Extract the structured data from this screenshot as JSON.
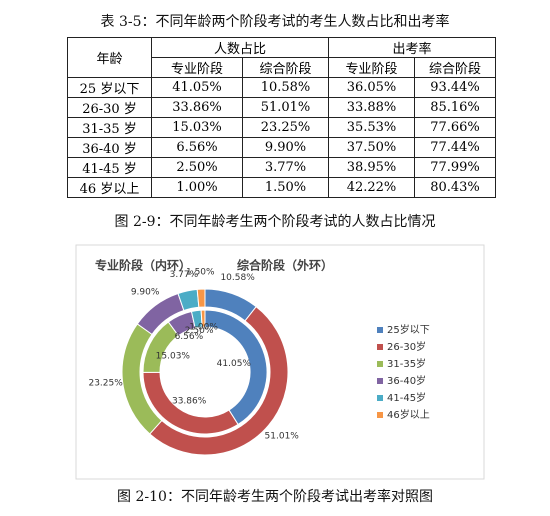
{
  "table_caption": "表 3-5：不同年龄两个阶段考试的考生人数占比和出考率",
  "table": {
    "header": [
      "年龄",
      "人数占比",
      "出考率"
    ],
    "subheader": [
      "专业阶段",
      "综合阶段",
      "专业阶段",
      "综合阶段"
    ],
    "rows": [
      [
        "25 岁以下",
        "41.05%",
        "10.58%",
        "36.05%",
        "93.44%"
      ],
      [
        "26-30 岁",
        "33.86%",
        "51.01%",
        "33.88%",
        "85.16%"
      ],
      [
        "31-35 岁",
        "15.03%",
        "23.25%",
        "35.53%",
        "77.66%"
      ],
      [
        "36-40 岁",
        "6.56%",
        "9.90%",
        "37.50%",
        "77.44%"
      ],
      [
        "41-45 岁",
        "2.50%",
        "3.77%",
        "38.95%",
        "77.99%"
      ],
      [
        "46 岁以上",
        "1.00%",
        "1.50%",
        "42.22%",
        "80.43%"
      ]
    ]
  },
  "figure_caption_1": "图 2-9：不同年龄考生两个阶段考试的人数占比情况",
  "chart": {
    "type": "doughnut",
    "categories": [
      "25岁以下",
      "26-30岁",
      "31-35岁",
      "36-40岁",
      "41-45岁",
      "46岁以上"
    ],
    "colors": [
      "#4f81bd",
      "#c0504d",
      "#9bbb59",
      "#8064a2",
      "#4bacc6",
      "#f79646"
    ],
    "series": [
      {
        "name": "专业阶段（内环）",
        "values": [
          41.05,
          33.86,
          15.03,
          6.56,
          2.5,
          1.0
        ],
        "value_labels": [
          "41.05%",
          "33.86%",
          "15.03%",
          "6.56%",
          "2.50%",
          "1.00%"
        ]
      },
      {
        "name": "综合阶段（外环）",
        "values": [
          10.58,
          51.01,
          23.25,
          9.9,
          3.77,
          1.5
        ],
        "value_labels": [
          "10.58%",
          "51.01%",
          "23.25%",
          "9.90%",
          "3.77%",
          "1.50%"
        ]
      }
    ]
  },
  "figure_caption_2": "图 2-10：不同年龄考生两个阶段考试出考率对照图"
}
